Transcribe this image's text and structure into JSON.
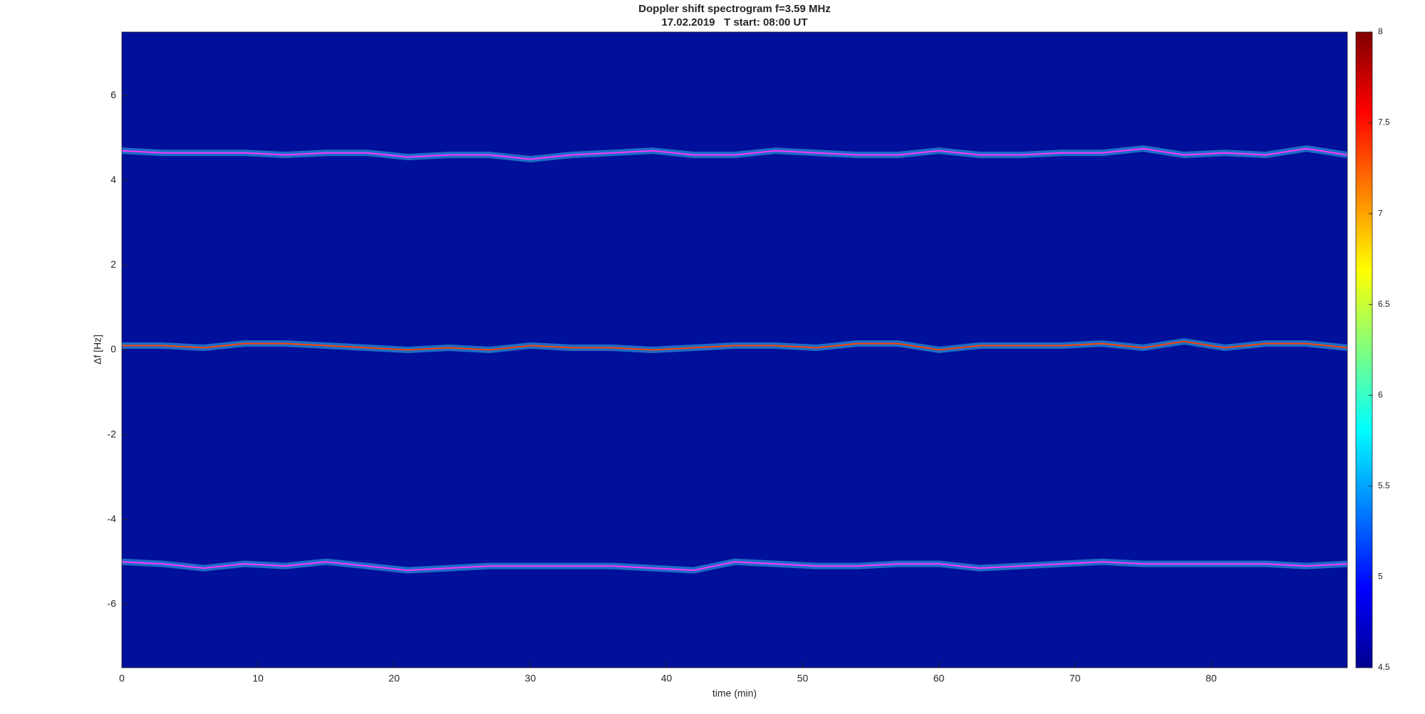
{
  "chart_data": {
    "type": "spectrogram",
    "title": "Doppler shift spectrogram f=3.59 MHz",
    "subtitle": "17.02.2019   T start: 08:00 UT",
    "x_label": "time (min)",
    "y_label": "Δf [Hz]",
    "xlim": [
      0,
      90
    ],
    "xticks": [
      0,
      10,
      20,
      30,
      40,
      50,
      60,
      70,
      80
    ],
    "ylim": [
      -7.5,
      7.5
    ],
    "yticks": [
      -6,
      -4,
      -2,
      0,
      2,
      4,
      6
    ],
    "clim": [
      4.5,
      8
    ],
    "cticks": [
      4.5,
      5,
      5.5,
      6,
      6.5,
      7,
      7.5,
      8
    ],
    "colormap": "jet",
    "grid": false,
    "x": [
      0,
      3,
      6,
      9,
      12,
      15,
      18,
      21,
      24,
      27,
      30,
      33,
      36,
      39,
      42,
      45,
      48,
      51,
      54,
      57,
      60,
      63,
      66,
      69,
      72,
      75,
      78,
      81,
      84,
      87,
      90
    ],
    "series": [
      {
        "color": "#ff33ff",
        "values": [
          4.7,
          4.65,
          4.65,
          4.65,
          4.6,
          4.65,
          4.65,
          4.55,
          4.6,
          4.6,
          4.5,
          4.6,
          4.65,
          4.7,
          4.6,
          4.6,
          4.7,
          4.65,
          4.6,
          4.6,
          4.7,
          4.6,
          4.6,
          4.65,
          4.65,
          4.75,
          4.6,
          4.65,
          4.6,
          4.75,
          4.6
        ]
      },
      {
        "color": "#ff4000",
        "values": [
          0.1,
          0.1,
          0.05,
          0.15,
          0.15,
          0.1,
          0.05,
          0.0,
          0.05,
          0.0,
          0.1,
          0.05,
          0.05,
          0.0,
          0.05,
          0.1,
          0.1,
          0.05,
          0.15,
          0.15,
          0.0,
          0.1,
          0.1,
          0.1,
          0.15,
          0.05,
          0.2,
          0.05,
          0.15,
          0.15,
          0.05
        ]
      },
      {
        "color": "#ff33ff",
        "values": [
          -5.0,
          -5.05,
          -5.15,
          -5.05,
          -5.1,
          -5.0,
          -5.1,
          -5.2,
          -5.15,
          -5.1,
          -5.1,
          -5.1,
          -5.1,
          -5.15,
          -5.2,
          -5.0,
          -5.05,
          -5.1,
          -5.1,
          -5.05,
          -5.05,
          -5.15,
          -5.1,
          -5.05,
          -5.0,
          -5.05,
          -5.05,
          -5.05,
          -5.05,
          -5.1,
          -5.05
        ]
      }
    ]
  }
}
